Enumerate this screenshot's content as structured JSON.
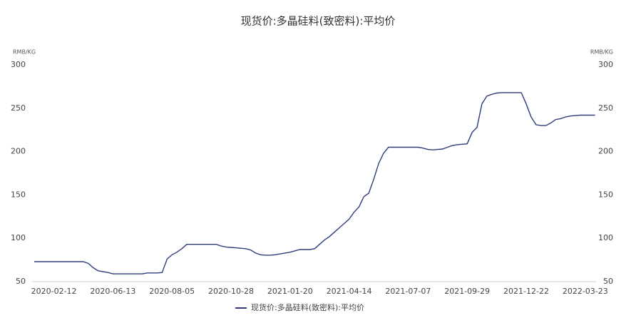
{
  "chart_data": {
    "type": "line",
    "title": "现货价:多晶硅料(致密料):平均价",
    "y_label": "RMB/KG",
    "y2_label": "RMB/KG",
    "categories": [
      null,
      null,
      null,
      null,
      "2020-02-12",
      null,
      null,
      null,
      null,
      null,
      null,
      null,
      null,
      null,
      null,
      null,
      "2020-06-13",
      null,
      null,
      null,
      null,
      null,
      null,
      null,
      null,
      null,
      null,
      null,
      "2020-08-05",
      null,
      null,
      null,
      null,
      null,
      null,
      null,
      null,
      null,
      null,
      null,
      "2020-10-28",
      null,
      null,
      null,
      null,
      null,
      null,
      null,
      null,
      null,
      null,
      null,
      "2021-01-20",
      null,
      null,
      null,
      null,
      null,
      null,
      null,
      null,
      null,
      null,
      null,
      "2021-04-14",
      null,
      null,
      null,
      null,
      null,
      null,
      null,
      null,
      null,
      null,
      null,
      "2021-07-07",
      null,
      null,
      null,
      null,
      null,
      null,
      null,
      null,
      null,
      null,
      null,
      "2021-09-29",
      null,
      null,
      null,
      null,
      null,
      null,
      null,
      null,
      null,
      null,
      null,
      "2021-12-22",
      null,
      null,
      null,
      null,
      null,
      null,
      null,
      null,
      null,
      null,
      null,
      "2022-03-23",
      null,
      null
    ],
    "series": [
      {
        "name": "现货价:多晶硅料(致密料):平均价",
        "color": "#2f3d7c",
        "values": [
          73,
          73,
          73,
          73,
          73,
          73,
          73,
          73,
          73,
          73,
          73,
          71,
          66,
          62.5,
          61.5,
          60.5,
          59,
          59,
          59,
          59,
          59,
          59,
          59,
          60,
          60,
          60,
          60.5,
          76,
          81,
          84,
          88,
          93,
          93,
          93,
          93,
          93,
          93,
          93,
          91,
          90,
          89.5,
          89,
          88.5,
          88,
          86.5,
          83,
          81,
          80.5,
          80.5,
          81,
          82,
          83,
          84,
          85.5,
          87,
          87,
          87,
          88,
          93,
          98,
          102,
          107,
          112,
          117,
          122,
          130,
          136,
          148,
          152,
          168,
          186,
          198,
          205,
          205,
          205,
          205,
          205,
          205,
          205,
          204,
          202.5,
          202,
          202.5,
          203,
          205,
          207,
          208,
          208.5,
          209,
          222,
          228,
          255,
          264,
          266,
          267.5,
          268,
          268,
          268,
          268,
          268,
          255,
          240,
          231,
          230,
          230,
          233,
          237,
          238,
          240,
          241,
          241.5,
          242,
          242,
          242,
          242
        ]
      }
    ],
    "ylim": [
      50,
      300
    ],
    "yticks": [
      50,
      100,
      150,
      200,
      250,
      300
    ],
    "y2lim": [
      50,
      300
    ],
    "y2ticks": [
      50,
      100,
      150,
      200,
      250,
      300
    ],
    "grid": false,
    "legend": "bottom"
  }
}
